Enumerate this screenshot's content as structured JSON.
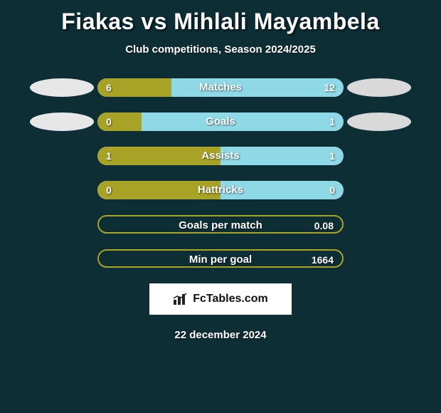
{
  "header": {
    "player1": "Fiakas",
    "vs": "vs",
    "player2": "Mihlali Mayambela",
    "subtitle": "Club competitions, Season 2024/2025"
  },
  "colors": {
    "player1": "#a8a227",
    "player2": "#8fd9e7",
    "player2_alt": "#79cddd",
    "logo1": "#e7e7e7",
    "logo2": "#d9d9d9",
    "track_border": "#a8a227"
  },
  "brand": {
    "text": "FcTables.com"
  },
  "footer": {
    "date": "22 december 2024"
  },
  "stats": [
    {
      "label": "Matches",
      "left_val": "6",
      "right_val": "12",
      "left_pct": 30,
      "right_pct": 70,
      "show_logo": true
    },
    {
      "label": "Goals",
      "left_val": "0",
      "right_val": "1",
      "left_pct": 18,
      "right_pct": 82,
      "show_logo": true
    },
    {
      "label": "Assists",
      "left_val": "1",
      "right_val": "1",
      "left_pct": 50,
      "right_pct": 50,
      "show_logo": false
    },
    {
      "label": "Hattricks",
      "left_val": "0",
      "right_val": "0",
      "left_pct": 50,
      "right_pct": 50,
      "show_logo": false
    },
    {
      "label": "Goals per match",
      "left_val": "",
      "right_val": "0.08",
      "left_pct": 0,
      "right_pct": 100,
      "show_logo": false,
      "outline_only": true
    },
    {
      "label": "Min per goal",
      "left_val": "",
      "right_val": "1664",
      "left_pct": 0,
      "right_pct": 100,
      "show_logo": false,
      "outline_only": true
    }
  ]
}
